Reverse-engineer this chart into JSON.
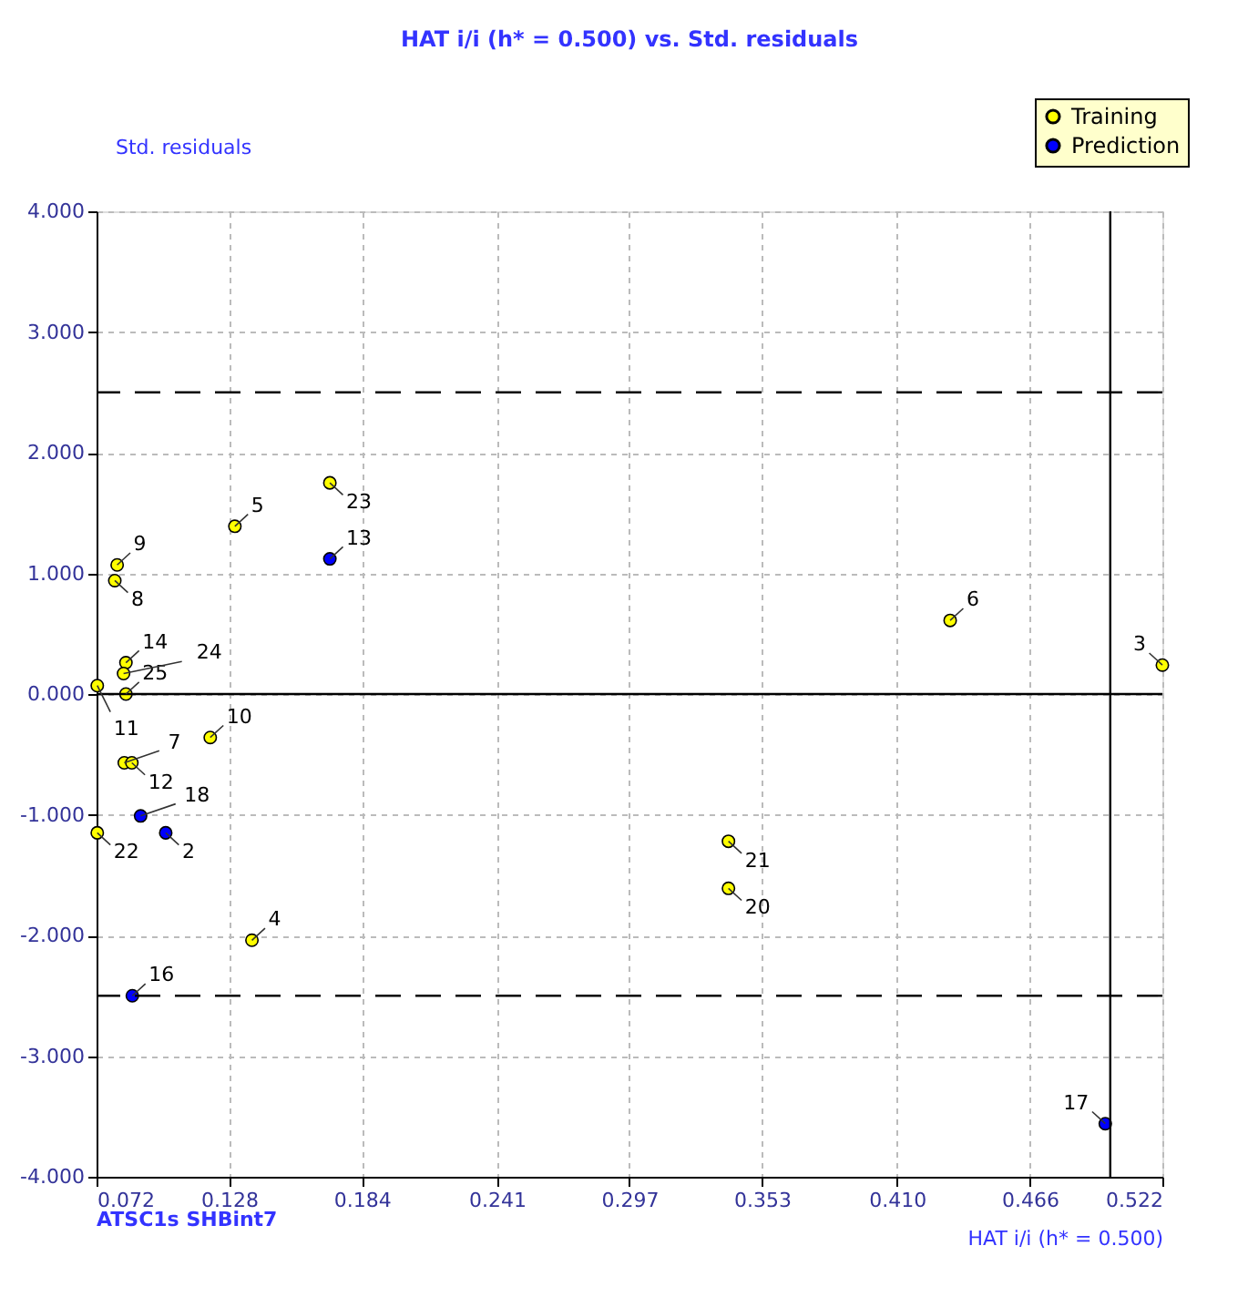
{
  "chart_data": {
    "type": "scatter",
    "title": "HAT i/i (h* = 0.500) vs. Std. residuals",
    "xlabel": "HAT i/i (h* = 0.500)",
    "ylabel": "Std. residuals",
    "annotations": [
      "ATSC1s  SHBint7",
      {
        "text": "9",
        "x": 0.0807,
        "y": 1.07
      },
      {
        "text": "8",
        "x": 0.0797,
        "y": 0.94
      },
      {
        "text": "14",
        "x": 0.0844,
        "y": 0.26
      },
      {
        "text": "11",
        "x": 0.0723,
        "y": 0.07
      },
      {
        "text": "24",
        "x": 0.0834,
        "y": 0.17
      },
      {
        "text": "25",
        "x": 0.0844,
        "y": 0.0
      },
      {
        "text": "10",
        "x": 0.12,
        "y": -0.36
      },
      {
        "text": "7",
        "x": 0.0837,
        "y": -0.57
      },
      {
        "text": "12",
        "x": 0.0869,
        "y": -0.57
      },
      {
        "text": "22",
        "x": 0.0723,
        "y": -1.15
      },
      {
        "text": "18",
        "x": 0.0906,
        "y": -1.01
      },
      {
        "text": "2",
        "x": 0.1012,
        "y": -1.15
      },
      {
        "text": "16",
        "x": 0.0871,
        "y": -2.5
      },
      {
        "text": "4",
        "x": 0.1376,
        "y": -2.04
      },
      {
        "text": "5",
        "x": 0.1304,
        "y": 1.39
      },
      {
        "text": "23",
        "x": 0.1705,
        "y": 1.75
      },
      {
        "text": "13",
        "x": 0.1705,
        "y": 1.12
      },
      {
        "text": "6",
        "x": 0.4324,
        "y": 0.61
      },
      {
        "text": "3",
        "x": 0.522,
        "y": 0.24
      },
      {
        "text": "21",
        "x": 0.3388,
        "y": -1.22
      },
      {
        "text": "20",
        "x": 0.3388,
        "y": -1.61
      },
      {
        "text": "17",
        "x": 0.4979,
        "y": -3.56
      }
    ],
    "series": [
      {
        "name": "Training",
        "color": "#ffff00",
        "x": [
          0.0807,
          0.0797,
          0.0844,
          0.0723,
          0.0834,
          0.0844,
          0.12,
          0.0837,
          0.0869,
          0.0723,
          0.1376,
          0.1304,
          0.1705,
          0.4324,
          0.522,
          0.3388,
          0.3388
        ],
        "values": [
          1.07,
          0.94,
          0.26,
          0.07,
          0.17,
          0.0,
          -0.36,
          -0.57,
          -0.57,
          -1.15,
          -2.04,
          1.39,
          1.75,
          0.61,
          0.24,
          -1.22,
          -1.61
        ]
      },
      {
        "name": "Prediction",
        "color": "#0000ff",
        "x": [
          0.0906,
          0.1012,
          0.0871,
          0.1705,
          0.4979
        ],
        "values": [
          -1.01,
          -1.15,
          -2.5,
          1.12,
          -3.56
        ]
      }
    ],
    "xlim": [
      0.072,
      0.522
    ],
    "ylim": [
      -4,
      4
    ],
    "xticks": [
      0.072,
      0.128,
      0.184,
      0.241,
      0.297,
      0.353,
      {
        "value": 0.41,
        "label": "0.410"
      },
      0.466,
      0.522
    ],
    "yticks": [
      {
        "value": -4,
        "label": "-4.000"
      },
      {
        "value": -3,
        "label": "-3.000"
      },
      {
        "value": -2,
        "label": "-2.000"
      },
      {
        "value": -1,
        "label": "-1.000"
      },
      {
        "value": 0,
        "label": "0.000"
      },
      {
        "value": 1,
        "label": "1.000"
      },
      {
        "value": 2,
        "label": "2.000"
      },
      {
        "value": 3,
        "label": "3.000"
      },
      {
        "value": 4,
        "label": "4.000"
      }
    ],
    "ref_lines": [
      {
        "axis": "x",
        "value": 0.5,
        "line_style": "solid"
      },
      {
        "axis": "y",
        "value": 0,
        "line_style": "solid"
      },
      {
        "axis": "y",
        "value": 2.5,
        "line_style": "dashed"
      },
      {
        "axis": "y",
        "value": -2.5,
        "line_style": "dashed"
      }
    ],
    "grid": true,
    "legend": "top right",
    "marker": "circle"
  }
}
